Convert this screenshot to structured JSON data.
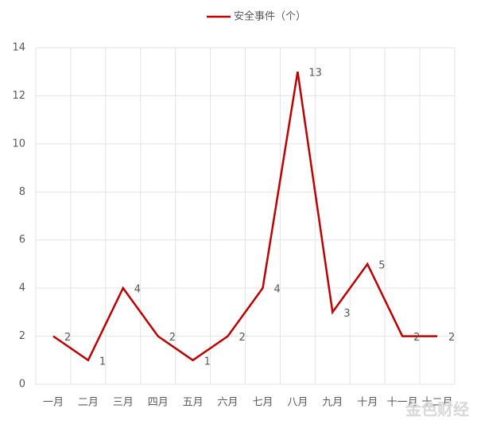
{
  "chart_data": {
    "type": "line",
    "categories": [
      "一月",
      "二月",
      "三月",
      "四月",
      "五月",
      "六月",
      "七月",
      "八月",
      "九月",
      "十月",
      "十一月",
      "十二月"
    ],
    "series": [
      {
        "name": "安全事件（个）",
        "color": "#c00000",
        "values": [
          2,
          1,
          4,
          2,
          1,
          2,
          4,
          13,
          3,
          5,
          2,
          2
        ]
      }
    ],
    "ylim": [
      0,
      14
    ],
    "yticks": [
      0,
      2,
      4,
      6,
      8,
      10,
      12,
      14
    ],
    "grid": true,
    "legend": "top",
    "watermark": "金色财经"
  }
}
